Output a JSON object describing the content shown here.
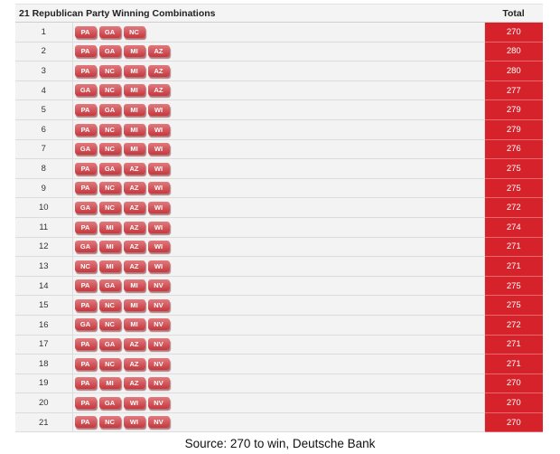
{
  "table": {
    "title": "21 Republican Party Winning Combinations",
    "total_header": "Total",
    "rows": [
      {
        "num": "1",
        "states": [
          "PA",
          "GA",
          "NC"
        ],
        "total": "270"
      },
      {
        "num": "2",
        "states": [
          "PA",
          "GA",
          "MI",
          "AZ"
        ],
        "total": "280"
      },
      {
        "num": "3",
        "states": [
          "PA",
          "NC",
          "MI",
          "AZ"
        ],
        "total": "280"
      },
      {
        "num": "4",
        "states": [
          "GA",
          "NC",
          "MI",
          "AZ"
        ],
        "total": "277"
      },
      {
        "num": "5",
        "states": [
          "PA",
          "GA",
          "MI",
          "WI"
        ],
        "total": "279"
      },
      {
        "num": "6",
        "states": [
          "PA",
          "NC",
          "MI",
          "WI"
        ],
        "total": "279"
      },
      {
        "num": "7",
        "states": [
          "GA",
          "NC",
          "MI",
          "WI"
        ],
        "total": "276"
      },
      {
        "num": "8",
        "states": [
          "PA",
          "GA",
          "AZ",
          "WI"
        ],
        "total": "275"
      },
      {
        "num": "9",
        "states": [
          "PA",
          "NC",
          "AZ",
          "WI"
        ],
        "total": "275"
      },
      {
        "num": "10",
        "states": [
          "GA",
          "NC",
          "AZ",
          "WI"
        ],
        "total": "272"
      },
      {
        "num": "11",
        "states": [
          "PA",
          "MI",
          "AZ",
          "WI"
        ],
        "total": "274"
      },
      {
        "num": "12",
        "states": [
          "GA",
          "MI",
          "AZ",
          "WI"
        ],
        "total": "271"
      },
      {
        "num": "13",
        "states": [
          "NC",
          "MI",
          "AZ",
          "WI"
        ],
        "total": "271"
      },
      {
        "num": "14",
        "states": [
          "PA",
          "GA",
          "MI",
          "NV"
        ],
        "total": "275"
      },
      {
        "num": "15",
        "states": [
          "PA",
          "NC",
          "MI",
          "NV"
        ],
        "total": "275"
      },
      {
        "num": "16",
        "states": [
          "GA",
          "NC",
          "MI",
          "NV"
        ],
        "total": "272"
      },
      {
        "num": "17",
        "states": [
          "PA",
          "GA",
          "AZ",
          "NV"
        ],
        "total": "271"
      },
      {
        "num": "18",
        "states": [
          "PA",
          "NC",
          "AZ",
          "NV"
        ],
        "total": "271"
      },
      {
        "num": "19",
        "states": [
          "PA",
          "MI",
          "AZ",
          "NV"
        ],
        "total": "270"
      },
      {
        "num": "20",
        "states": [
          "PA",
          "GA",
          "WI",
          "NV"
        ],
        "total": "270"
      },
      {
        "num": "21",
        "states": [
          "PA",
          "NC",
          "WI",
          "NV"
        ],
        "total": "270"
      }
    ]
  },
  "source": "Source: 270 to win, Deutsche Bank",
  "colors": {
    "total_fill": "#d6232b",
    "chip_fill": "#c5383e",
    "row_fill": "#f3f3f3"
  }
}
